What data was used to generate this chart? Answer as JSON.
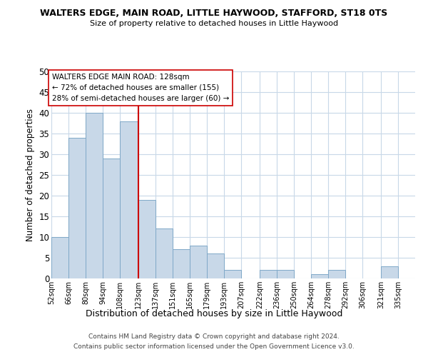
{
  "title": "WALTERS EDGE, MAIN ROAD, LITTLE HAYWOOD, STAFFORD, ST18 0TS",
  "subtitle": "Size of property relative to detached houses in Little Haywood",
  "xlabel": "Distribution of detached houses by size in Little Haywood",
  "ylabel": "Number of detached properties",
  "bar_color": "#c8d8e8",
  "bar_edgecolor": "#7fa8c8",
  "vline_color": "#cc0000",
  "vline_x": 123,
  "categories": [
    "52sqm",
    "66sqm",
    "80sqm",
    "94sqm",
    "108sqm",
    "123sqm",
    "137sqm",
    "151sqm",
    "165sqm",
    "179sqm",
    "193sqm",
    "207sqm",
    "222sqm",
    "236sqm",
    "250sqm",
    "264sqm",
    "278sqm",
    "292sqm",
    "306sqm",
    "321sqm",
    "335sqm"
  ],
  "bin_edges": [
    52,
    66,
    80,
    94,
    108,
    123,
    137,
    151,
    165,
    179,
    193,
    207,
    222,
    236,
    250,
    264,
    278,
    292,
    306,
    321,
    335,
    349
  ],
  "values": [
    10,
    34,
    40,
    29,
    38,
    19,
    12,
    7,
    8,
    6,
    2,
    0,
    2,
    2,
    0,
    1,
    2,
    0,
    0,
    3,
    0
  ],
  "ylim": [
    0,
    50
  ],
  "yticks": [
    0,
    5,
    10,
    15,
    20,
    25,
    30,
    35,
    40,
    45,
    50
  ],
  "annotation_title": "WALTERS EDGE MAIN ROAD: 128sqm",
  "annotation_line1": "← 72% of detached houses are smaller (155)",
  "annotation_line2": "28% of semi-detached houses are larger (60) →",
  "annotation_box_color": "#ffffff",
  "annotation_box_edgecolor": "#cc0000",
  "footer_line1": "Contains HM Land Registry data © Crown copyright and database right 2024.",
  "footer_line2": "Contains public sector information licensed under the Open Government Licence v3.0.",
  "background_color": "#ffffff",
  "grid_color": "#c8d8e8"
}
